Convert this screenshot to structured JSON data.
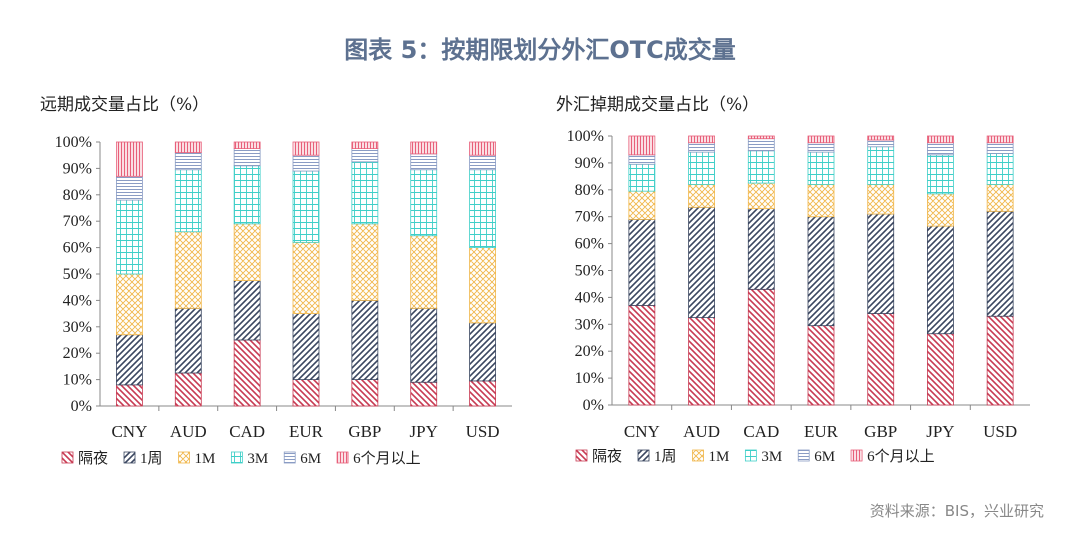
{
  "title": "图表 5：按期限划分外汇OTC成交量",
  "source": "资料来源：BIS，兴业研究",
  "chart_data": [
    {
      "type": "bar",
      "stacked": true,
      "title": "远期成交量占比（%）",
      "categories": [
        "CNY",
        "AUD",
        "CAD",
        "EUR",
        "GBP",
        "JPY",
        "USD"
      ],
      "ylim": [
        0,
        100
      ],
      "yticks": [
        "0%",
        "10%",
        "20%",
        "30%",
        "40%",
        "50%",
        "60%",
        "70%",
        "80%",
        "90%",
        "100%"
      ],
      "legend_placement": "bottom",
      "series": [
        {
          "name": "隔夜",
          "color": "#c83a52",
          "values": [
            8,
            12.5,
            25,
            10,
            10,
            9,
            9.5
          ]
        },
        {
          "name": "1周",
          "color": "#3a4660",
          "values": [
            19,
            24.5,
            22.5,
            25,
            30,
            28,
            22
          ]
        },
        {
          "name": "1M",
          "color": "#f0b64a",
          "values": [
            23,
            29,
            21.5,
            27,
            29,
            27.5,
            28.5
          ]
        },
        {
          "name": "3M",
          "color": "#3fcfc8",
          "values": [
            28,
            23.5,
            22,
            27,
            23.5,
            25,
            29.5
          ]
        },
        {
          "name": "6M",
          "color": "#8a9cc4",
          "values": [
            9,
            6.5,
            6.5,
            6,
            5,
            6,
            5.5
          ]
        },
        {
          "name": "6个月以上",
          "color": "#e8607a",
          "values": [
            13,
            4,
            2.5,
            5,
            2.5,
            4.5,
            5
          ]
        }
      ]
    },
    {
      "type": "bar",
      "stacked": true,
      "title": "外汇掉期成交量占比（%）",
      "categories": [
        "CNY",
        "AUD",
        "CAD",
        "EUR",
        "GBP",
        "JPY",
        "USD"
      ],
      "ylim": [
        0,
        100
      ],
      "yticks": [
        "0%",
        "10%",
        "20%",
        "30%",
        "40%",
        "50%",
        "60%",
        "70%",
        "80%",
        "90%",
        "100%"
      ],
      "legend_placement": "bottom",
      "series": [
        {
          "name": "隔夜",
          "color": "#c83a52",
          "values": [
            37,
            32.5,
            43,
            29.5,
            34,
            26.5,
            33
          ]
        },
        {
          "name": "1周",
          "color": "#3a4660",
          "values": [
            32,
            41,
            30,
            40.5,
            37,
            40,
            39
          ]
        },
        {
          "name": "1M",
          "color": "#f0b64a",
          "values": [
            10.5,
            8.5,
            9.5,
            12,
            11,
            12,
            10
          ]
        },
        {
          "name": "3M",
          "color": "#3fcfc8",
          "values": [
            10,
            12,
            12,
            12,
            14,
            14.5,
            11.5
          ]
        },
        {
          "name": "6M",
          "color": "#8a9cc4",
          "values": [
            3.5,
            3.5,
            4.5,
            3.5,
            2.5,
            4.5,
            4
          ]
        },
        {
          "name": "6个月以上",
          "color": "#e8607a",
          "values": [
            7,
            2.5,
            1,
            2.5,
            1.5,
            2.5,
            2.5
          ]
        }
      ]
    }
  ]
}
